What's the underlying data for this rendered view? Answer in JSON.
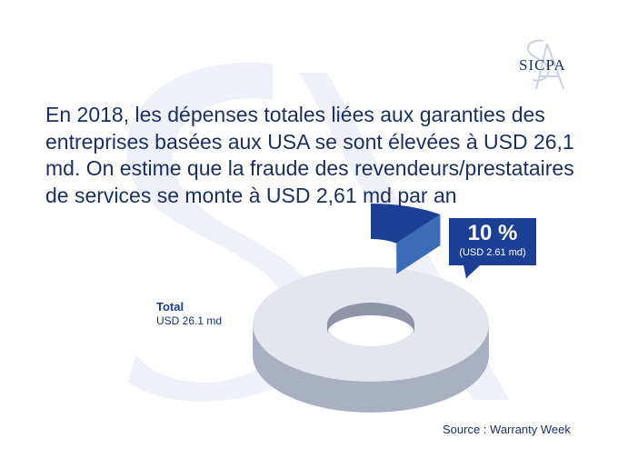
{
  "brand": {
    "name": "SICPA",
    "monogram": "S A",
    "color": "#1a2f5e",
    "watermark_color": "#eef2f8"
  },
  "headline": "En 2018, les dépenses totales liées aux garanties des entreprises basées aux USA se sont élevées à USD 26,1 md. On estime que la fraude des revendeurs/prestataires de services se monte à USD 2,61 md par an",
  "source": "Source : Warranty Week",
  "chart_data": {
    "type": "pie",
    "style": "3d-donut",
    "total": {
      "label": "Total",
      "value_label": "USD 26.1 md",
      "value": 26.1,
      "color": "#e3e6ec"
    },
    "slices": [
      {
        "value": 2.61,
        "percent": 10,
        "percent_label": "10 %",
        "value_label": "(USD 2.61 md)",
        "color": "#1c3f95",
        "exploded": true
      },
      {
        "value": 23.49,
        "percent": 90,
        "color": "#e3e6ec",
        "exploded": false
      }
    ]
  }
}
